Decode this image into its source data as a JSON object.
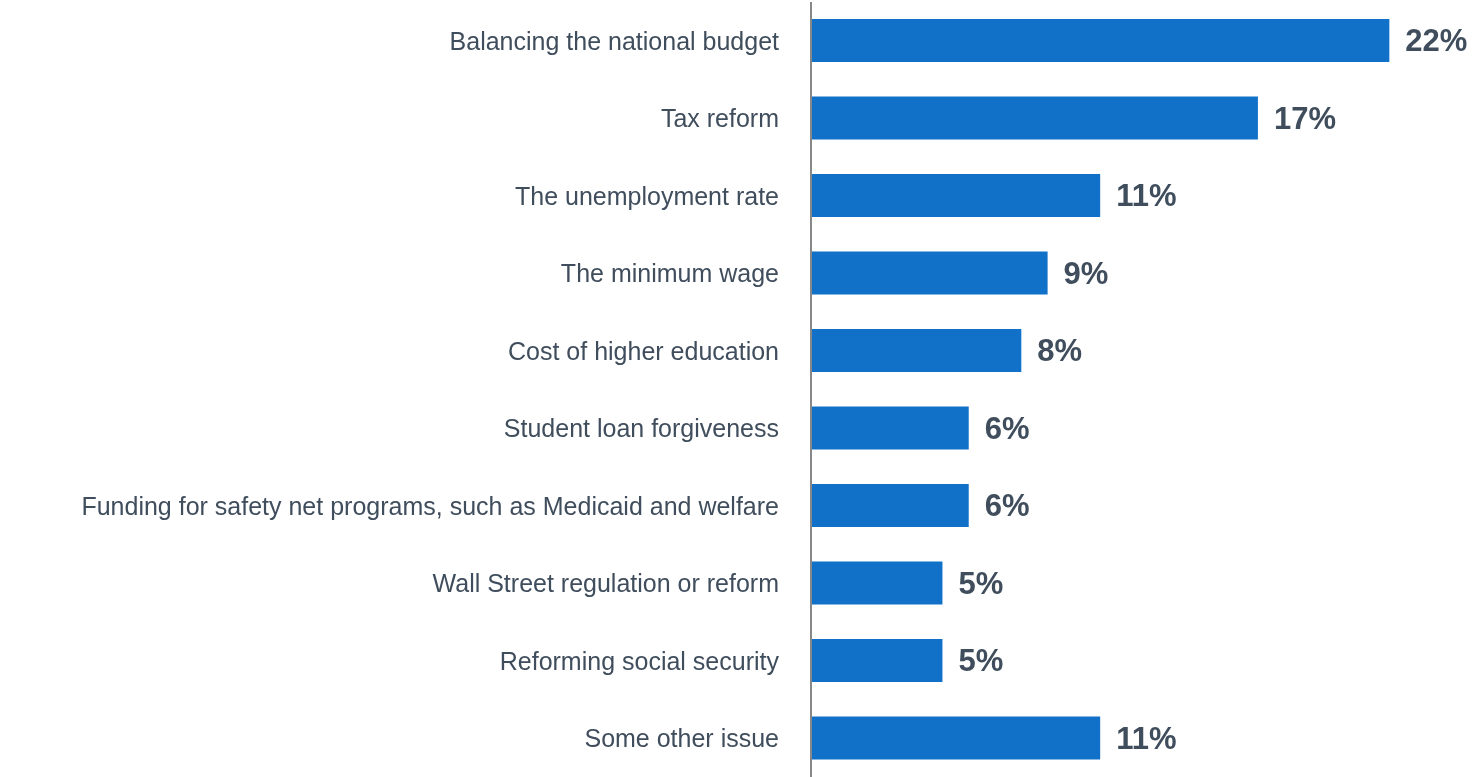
{
  "chart_data": {
    "type": "bar",
    "orientation": "horizontal",
    "categories": [
      "Balancing the national budget",
      "Tax reform",
      "The unemployment rate",
      "The minimum wage",
      "Cost of higher education",
      "Student loan forgiveness",
      "Funding for safety net programs, such as Medicaid and welfare",
      "Wall Street regulation or reform",
      "Reforming social security",
      "Some other issue"
    ],
    "values": [
      22,
      17,
      11,
      9,
      8,
      6,
      6,
      5,
      5,
      11
    ],
    "value_labels": [
      "22%",
      "17%",
      "11%",
      "9%",
      "8%",
      "6%",
      "6%",
      "5%",
      "5%",
      "11%"
    ],
    "color": "#1170c8"
  }
}
